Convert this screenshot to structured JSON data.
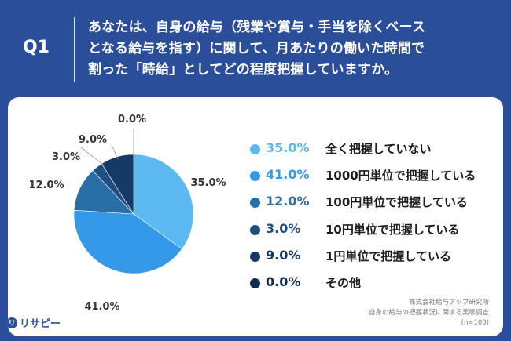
{
  "header": {
    "q_label": "Q1",
    "question_lines": [
      "あなたは、自身の給与（残業や賞与・手当を除くベース",
      "となる給与を指す）に関して、月あたりの働いた時間で",
      "割った「時給」としてどの程度把握していますか。"
    ]
  },
  "chart_data": {
    "type": "pie",
    "start_angle_deg": 0,
    "direction": "clockwise",
    "slices": [
      {
        "label": "全く把握していない",
        "value": 35.0,
        "display": "35.0%",
        "color": "#5cb8f0"
      },
      {
        "label": "1000円単位で把握している",
        "value": 41.0,
        "display": "41.0%",
        "color": "#3399e8"
      },
      {
        "label": "100円単位で把握している",
        "value": 12.0,
        "display": "12.0%",
        "color": "#2a6ea8"
      },
      {
        "label": "10円単位で把握している",
        "value": 3.0,
        "display": "3.0%",
        "color": "#1f4e80"
      },
      {
        "label": "1円単位で把握している",
        "value": 9.0,
        "display": "9.0%",
        "color": "#153a66"
      },
      {
        "label": "その他",
        "value": 0.0,
        "display": "0.0%",
        "color": "#0f2c50"
      }
    ],
    "legend_position": "right"
  },
  "source": {
    "line1": "株式会社給与アップ研究所",
    "line2": "自身の給与の把握状況に関する実態調査",
    "line3": "(n=100)"
  },
  "logo": {
    "icon_glyph": "リ",
    "text": "リサピー"
  }
}
